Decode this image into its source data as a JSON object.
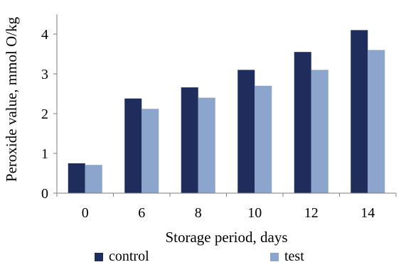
{
  "chart_data": {
    "type": "bar",
    "title": "",
    "xlabel": "Storage period, days",
    "ylabel": "Peroxide value, mmol O/kg",
    "categories": [
      "0",
      "6",
      "8",
      "10",
      "12",
      "14"
    ],
    "series": [
      {
        "name": "control",
        "color": "#1f2d5c",
        "values": [
          0.75,
          2.38,
          2.66,
          3.1,
          3.55,
          4.1
        ]
      },
      {
        "name": "test",
        "color": "#8ca5cc",
        "values": [
          0.71,
          2.12,
          2.4,
          2.7,
          3.1,
          3.6
        ]
      }
    ],
    "ylim": [
      0,
      4.5
    ],
    "yticks": [
      "0",
      "1",
      "2",
      "3",
      "4"
    ],
    "grid": false,
    "legend_position": "bottom"
  }
}
